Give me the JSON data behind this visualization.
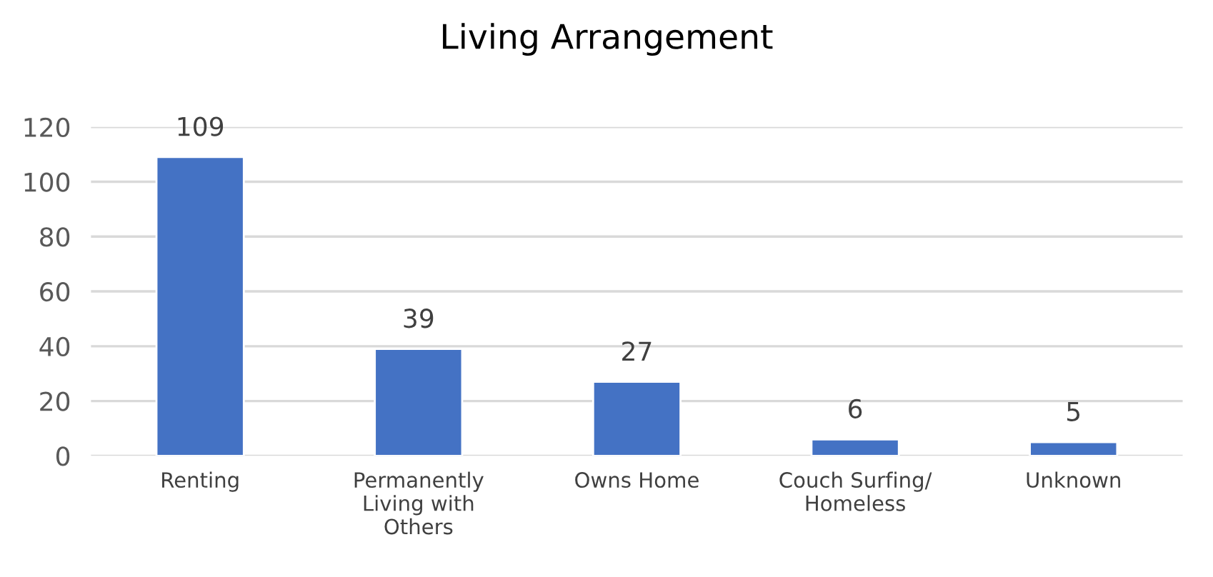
{
  "chart_data": {
    "type": "bar",
    "title": "Living Arrangement",
    "categories": [
      "Renting",
      "Permanently Living with Others",
      "Owns Home",
      "Couch Surfing/ Homeless",
      "Unknown"
    ],
    "values": [
      109,
      39,
      27,
      6,
      5
    ],
    "color": "#4472c4",
    "ylim": [
      0,
      120
    ],
    "yticks": [
      0,
      20,
      40,
      60,
      80,
      100,
      120
    ],
    "grid": "y",
    "data_labels": true
  }
}
